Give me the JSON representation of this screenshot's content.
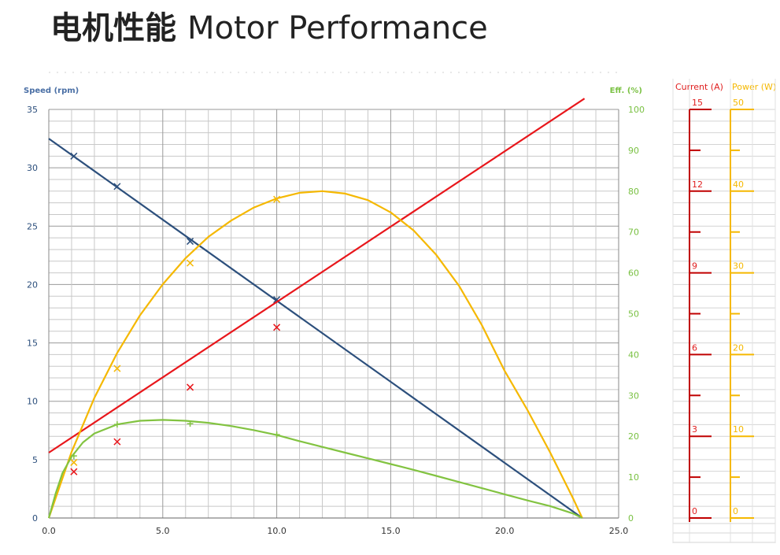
{
  "title": {
    "zh": "电机性能",
    "en": "Motor Performance"
  },
  "chart_data": {
    "type": "line",
    "xlabel": "",
    "xlim": [
      0,
      25
    ],
    "x_ticks": [
      "0.0",
      "5.0",
      "10.0",
      "15.0",
      "20.0",
      "25.0"
    ],
    "grid": true,
    "axes": {
      "speed": {
        "label": "Speed (rpm)",
        "range": [
          0,
          35
        ],
        "ticks": [
          "0",
          "5",
          "10",
          "15",
          "20",
          "25",
          "30",
          "35"
        ],
        "color": "#4a6fa5",
        "side": "left"
      },
      "efficiency": {
        "label": "Eff. (%)",
        "range": [
          0,
          100
        ],
        "ticks": [
          "0",
          "10",
          "20",
          "30",
          "40",
          "50",
          "60",
          "70",
          "80",
          "90",
          "100"
        ],
        "color": "#7ac143",
        "side": "right"
      },
      "current": {
        "label": "Current (A)",
        "range": [
          0,
          15
        ],
        "ticks": [
          "0",
          "3",
          "6",
          "9",
          "12",
          "15"
        ],
        "color": "#e02020",
        "side": "right"
      },
      "power": {
        "label": "Power (W)",
        "range": [
          0,
          50
        ],
        "ticks": [
          "0",
          "10",
          "20",
          "30",
          "40",
          "50"
        ],
        "color": "#f5b800",
        "side": "right"
      }
    },
    "series": [
      {
        "axis": "speed",
        "color": "#2c4f7c",
        "x": [
          0,
          23.4
        ],
        "y": [
          32.5,
          0
        ],
        "markers": [
          [
            1.1,
            31.0
          ],
          [
            3.0,
            28.4
          ],
          [
            6.2,
            23.7
          ],
          [
            10.0,
            18.7
          ]
        ]
      },
      {
        "axis": "current",
        "color": "#e8161b",
        "x": [
          0,
          23.5
        ],
        "y": [
          2.4,
          15.4
        ],
        "markers": [
          [
            1.1,
            1.7
          ],
          [
            3.0,
            2.8
          ],
          [
            6.2,
            4.8
          ],
          [
            10.0,
            7.0
          ]
        ]
      },
      {
        "axis": "power",
        "color": "#f5b800",
        "x": [
          0,
          1,
          2,
          3,
          4,
          5,
          6,
          7,
          8,
          9,
          10,
          11,
          12,
          13,
          14,
          15,
          16,
          17,
          18,
          19,
          20,
          21,
          22,
          23,
          23.4
        ],
        "y": [
          0,
          8.1,
          14.7,
          20.2,
          24.8,
          28.6,
          31.8,
          34.4,
          36.4,
          38.0,
          39.1,
          39.8,
          40.0,
          39.7,
          38.9,
          37.4,
          35.2,
          32.2,
          28.4,
          23.6,
          18.0,
          13.2,
          8.0,
          2.4,
          0
        ],
        "markers": [
          [
            1.1,
            6.8
          ],
          [
            3.0,
            18.3
          ],
          [
            6.2,
            31.2
          ],
          [
            10.0,
            39.0
          ]
        ]
      },
      {
        "axis": "efficiency",
        "color": "#82c341",
        "x": [
          0,
          0.3,
          0.6,
          1,
          1.5,
          2,
          3,
          4,
          5,
          6,
          7,
          8,
          9,
          10,
          11,
          12,
          13,
          14,
          15,
          16,
          17,
          18,
          19,
          20,
          21,
          22,
          23,
          23.4
        ],
        "y": [
          0,
          6,
          11,
          15,
          18.5,
          20.7,
          22.9,
          23.8,
          24.0,
          23.8,
          23.3,
          22.5,
          21.5,
          20.3,
          18.8,
          17.4,
          16.0,
          14.6,
          13.2,
          11.8,
          10.3,
          8.8,
          7.3,
          5.8,
          4.3,
          2.9,
          1.1,
          0
        ],
        "markers": [
          [
            1.1,
            15.2
          ],
          [
            3.0,
            22.9
          ],
          [
            6.2,
            23.1
          ],
          [
            10.0,
            20.4
          ]
        ]
      }
    ]
  }
}
